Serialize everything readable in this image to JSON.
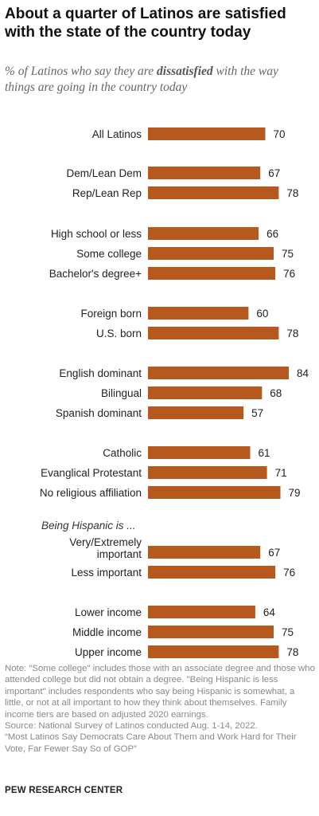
{
  "title": "About a quarter of Latinos are satisfied with the state of the country today",
  "subtitle": {
    "before": "% of Latinos who say they are ",
    "emphasis": "dissatisfied",
    "after": " with the way things are going in the country today"
  },
  "colors": {
    "bar": "#b5591f",
    "label": "#222222",
    "section": "#333333"
  },
  "chart_data": {
    "type": "bar",
    "orientation": "horizontal",
    "section_label": "Being Hispanic is ...",
    "categories": [
      "All Latinos",
      "Dem/Lean Dem",
      "Rep/Lean Rep",
      "High school or less",
      "Some college",
      "Bachelor's degree+",
      "Foreign born",
      "U.S. born",
      "English dominant",
      "Bilingual",
      "Spanish dominant",
      "Catholic",
      "Evanglical Protestant",
      "No religious affiliation",
      "Very/Extremely important",
      "Less important",
      "Lower income",
      "Middle income",
      "Upper income"
    ],
    "values": [
      70,
      67,
      78,
      66,
      75,
      76,
      60,
      78,
      84,
      68,
      57,
      61,
      71,
      79,
      67,
      76,
      64,
      75,
      78
    ],
    "value_labels": [
      "70",
      "67",
      "78",
      "66",
      "75",
      "76",
      "60",
      "78",
      "84",
      "68",
      "57",
      "61",
      "71",
      "79",
      "67",
      "76",
      "64",
      "75",
      "78"
    ],
    "xlim": [
      0,
      84
    ],
    "grid": false,
    "legend": "none"
  },
  "notes": {
    "note": "Note: \"Some college\" includes those with an associate degree and those who attended college but did not obtain a degree. \"Being Hispanic is less important\" includes respondents who say being Hispanic is somewhat, a little, or not at all important to how they think about themselves. Family income tiers are based on adjusted 2020 earnings.",
    "source": "Source: National Survey of Latinos conducted Aug. 1-14, 2022.",
    "report": "“Most Latinos Say Democrats Care About Them and Work Hard for Their Vote, Far Fewer Say So of GOP”"
  },
  "brand": "PEW RESEARCH CENTER"
}
